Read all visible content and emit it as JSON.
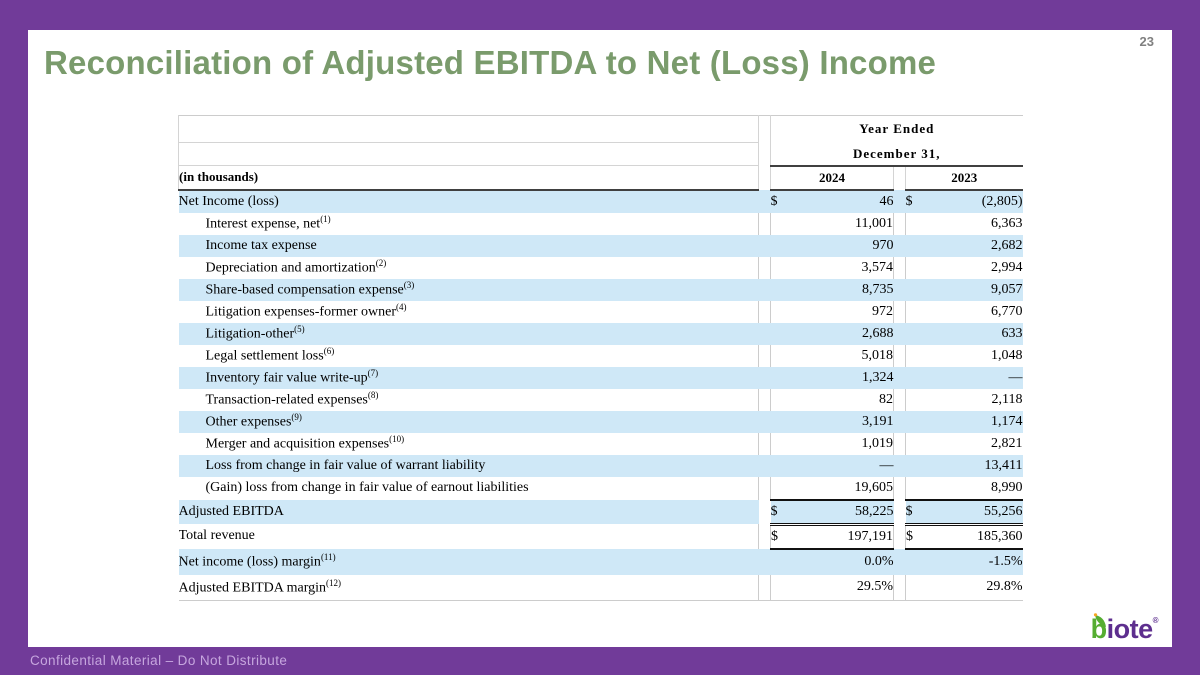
{
  "slide": {
    "page_number": "23",
    "title": "Reconciliation of Adjusted EBITDA to Net (Loss) Income"
  },
  "footer": {
    "text": "Confidential Material – Do Not Distribute"
  },
  "logo": {
    "first_letter": "b",
    "rest": "iote",
    "trademark": "®"
  },
  "colors": {
    "border_purple": "#713B99",
    "title_green": "#7A9B6C",
    "row_blue": "#CFE8F7",
    "header_rule_dark": "#404040",
    "total_rule_black": "#111111",
    "logo_green": "#55AD31",
    "logo_purple": "#5D2E8E",
    "footer_text": "#C6A6DE",
    "page_number_gray": "#808080"
  },
  "chart_data": {
    "type": "table",
    "units_label": "(in thousands)",
    "period_header_line1": "Year Ended",
    "period_header_line2": "December 31,",
    "columns": [
      "2024",
      "2023"
    ],
    "currency_symbol": "$",
    "rows": [
      {
        "label": "Net Income (loss)",
        "sup": "",
        "indent": false,
        "dollar": true,
        "values": [
          "46",
          "(2,805)"
        ],
        "shaded": true,
        "underline": "",
        "gap_white": false,
        "tall": false
      },
      {
        "label": "Interest expense, net",
        "sup": "(1)",
        "indent": true,
        "dollar": false,
        "values": [
          "11,001",
          "6,363"
        ],
        "shaded": false,
        "underline": "",
        "gap_white": false,
        "tall": false
      },
      {
        "label": "Income tax expense",
        "sup": "",
        "indent": true,
        "dollar": false,
        "values": [
          "970",
          "2,682"
        ],
        "shaded": true,
        "underline": "",
        "gap_white": false,
        "tall": false
      },
      {
        "label": "Depreciation and amortization",
        "sup": "(2)",
        "indent": true,
        "dollar": false,
        "values": [
          "3,574",
          "2,994"
        ],
        "shaded": false,
        "underline": "",
        "gap_white": false,
        "tall": false
      },
      {
        "label": "Share-based compensation expense",
        "sup": "(3)",
        "indent": true,
        "dollar": false,
        "values": [
          "8,735",
          "9,057"
        ],
        "shaded": true,
        "underline": "",
        "gap_white": false,
        "tall": false
      },
      {
        "label": "Litigation expenses-former owner",
        "sup": "(4)",
        "indent": true,
        "dollar": false,
        "values": [
          "972",
          "6,770"
        ],
        "shaded": false,
        "underline": "",
        "gap_white": false,
        "tall": false
      },
      {
        "label": "Litigation-other",
        "sup": "(5)",
        "indent": true,
        "dollar": false,
        "values": [
          "2,688",
          "633"
        ],
        "shaded": true,
        "underline": "",
        "gap_white": false,
        "tall": false
      },
      {
        "label": "Legal settlement loss",
        "sup": "(6)",
        "indent": true,
        "dollar": false,
        "values": [
          "5,018",
          "1,048"
        ],
        "shaded": false,
        "underline": "",
        "gap_white": false,
        "tall": false
      },
      {
        "label": "Inventory fair value write-up",
        "sup": "(7)",
        "indent": true,
        "dollar": false,
        "values": [
          "1,324",
          "—"
        ],
        "shaded": true,
        "underline": "",
        "gap_white": false,
        "tall": false
      },
      {
        "label": "Transaction-related expenses",
        "sup": "(8)",
        "indent": true,
        "dollar": false,
        "values": [
          "82",
          "2,118"
        ],
        "shaded": false,
        "underline": "",
        "gap_white": false,
        "tall": false
      },
      {
        "label": "Other expenses",
        "sup": "(9)",
        "indent": true,
        "dollar": false,
        "values": [
          "3,191",
          "1,174"
        ],
        "shaded": true,
        "underline": "",
        "gap_white": false,
        "tall": false
      },
      {
        "label": "Merger and acquisition expenses",
        "sup": "(10)",
        "indent": true,
        "dollar": false,
        "values": [
          "1,019",
          "2,821"
        ],
        "shaded": false,
        "underline": "",
        "gap_white": false,
        "tall": false
      },
      {
        "label": "Loss from change in fair value of warrant liability",
        "sup": "",
        "indent": true,
        "dollar": false,
        "values": [
          "—",
          "13,411"
        ],
        "shaded": true,
        "underline": "",
        "gap_white": false,
        "tall": false
      },
      {
        "label": "(Gain) loss from change in fair value of earnout liabilities",
        "sup": "",
        "indent": true,
        "dollar": false,
        "values": [
          "19,605",
          "8,990"
        ],
        "shaded": false,
        "underline": "single",
        "gap_white": false,
        "tall": false
      },
      {
        "label": "Adjusted EBITDA",
        "sup": "",
        "indent": false,
        "dollar": true,
        "values": [
          "58,225",
          "55,256"
        ],
        "shaded": true,
        "underline": "double",
        "gap_white": true,
        "tall": false
      },
      {
        "label": "Total revenue",
        "sup": "",
        "indent": false,
        "dollar": true,
        "values": [
          "197,191",
          "185,360"
        ],
        "shaded": false,
        "underline": "single",
        "gap_white": true,
        "tall": false
      },
      {
        "label": "Net income (loss) margin",
        "sup": "(11)",
        "indent": false,
        "dollar": false,
        "values": [
          "0.0%",
          "-1.5%"
        ],
        "shaded": true,
        "underline": "",
        "gap_white": false,
        "tall": true
      },
      {
        "label": "Adjusted EBITDA margin",
        "sup": "(12)",
        "indent": false,
        "dollar": false,
        "values": [
          "29.5%",
          "29.8%"
        ],
        "shaded": false,
        "underline": "",
        "gap_white": false,
        "tall": true
      }
    ]
  }
}
